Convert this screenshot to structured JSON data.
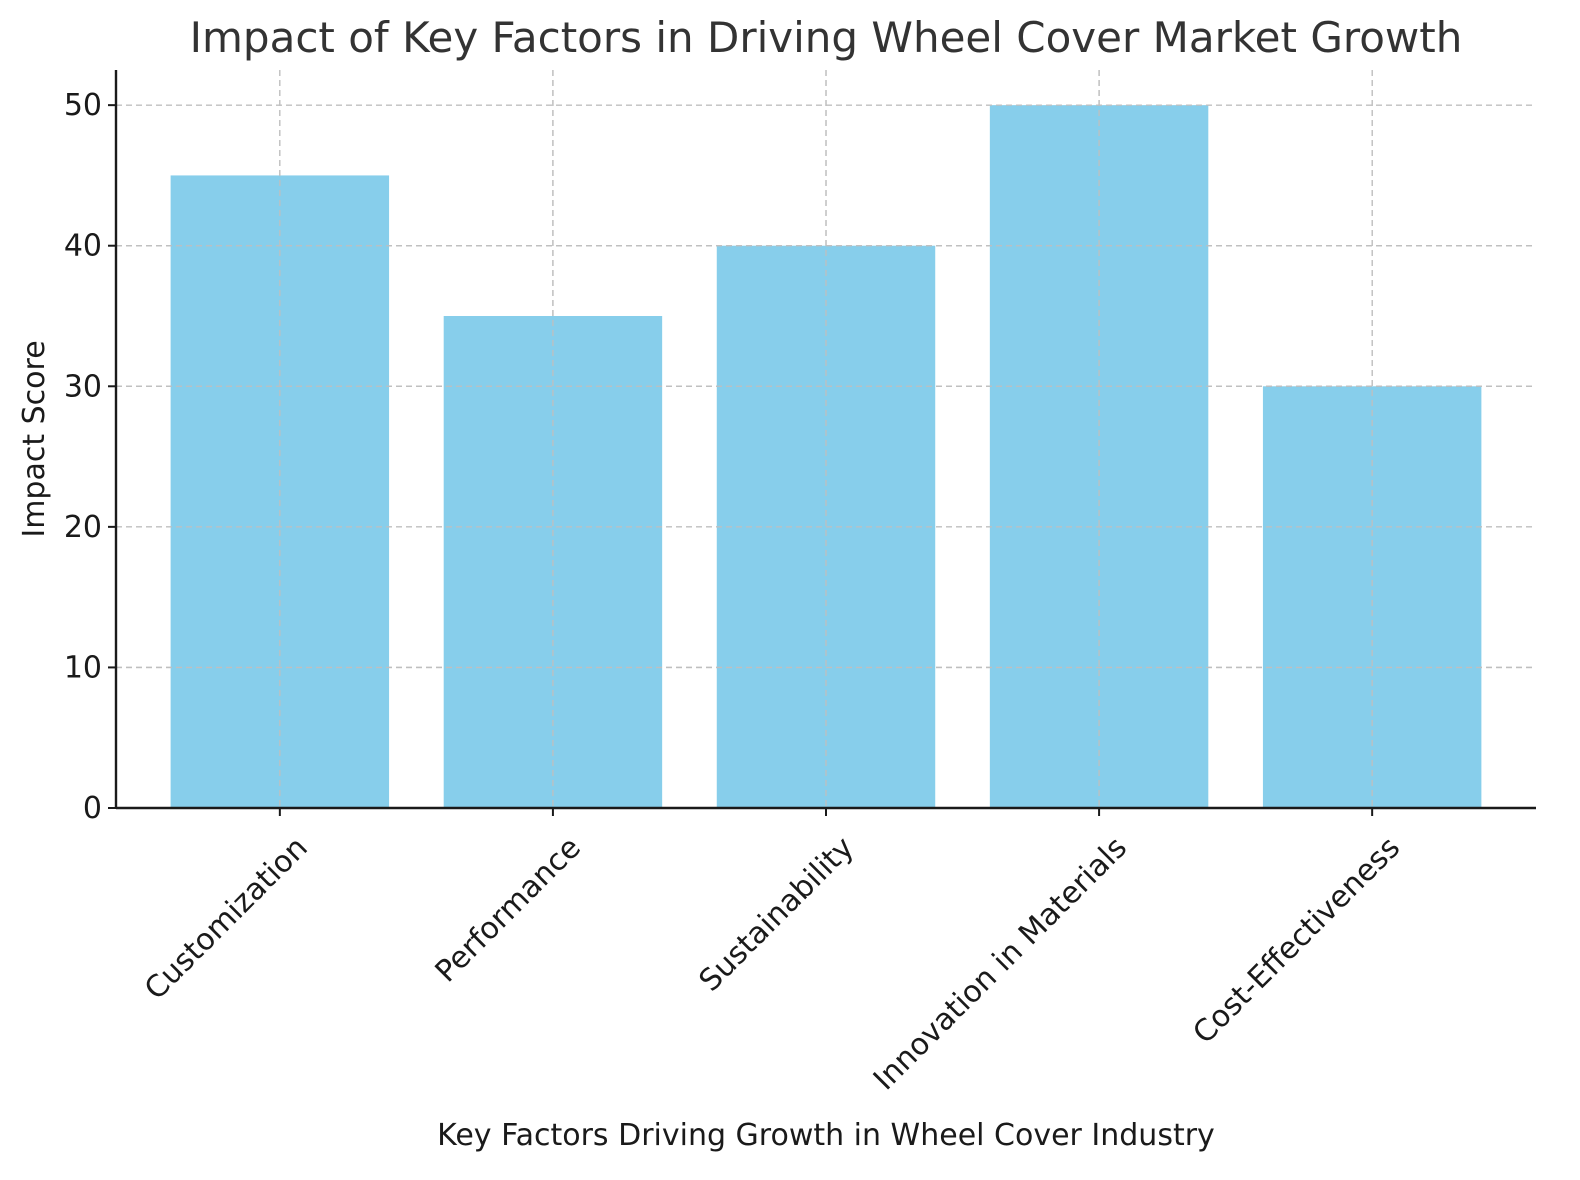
{
  "chart_data": {
    "type": "bar",
    "title": "Impact of Key Factors in Driving Wheel Cover Market Growth",
    "xlabel": "Key Factors Driving Growth in Wheel Cover Industry",
    "ylabel": "Impact Score",
    "categories": [
      "Customization",
      "Performance",
      "Sustainability",
      "Innovation in Materials",
      "Cost-Effectiveness"
    ],
    "values": [
      45,
      35,
      40,
      50,
      30
    ],
    "ylim": [
      0,
      52.5
    ],
    "yticks": [
      0,
      10,
      20,
      30,
      40,
      50
    ],
    "grid": true,
    "bar_color": "#87ceeb",
    "x_tick_rotation_deg": 45
  }
}
